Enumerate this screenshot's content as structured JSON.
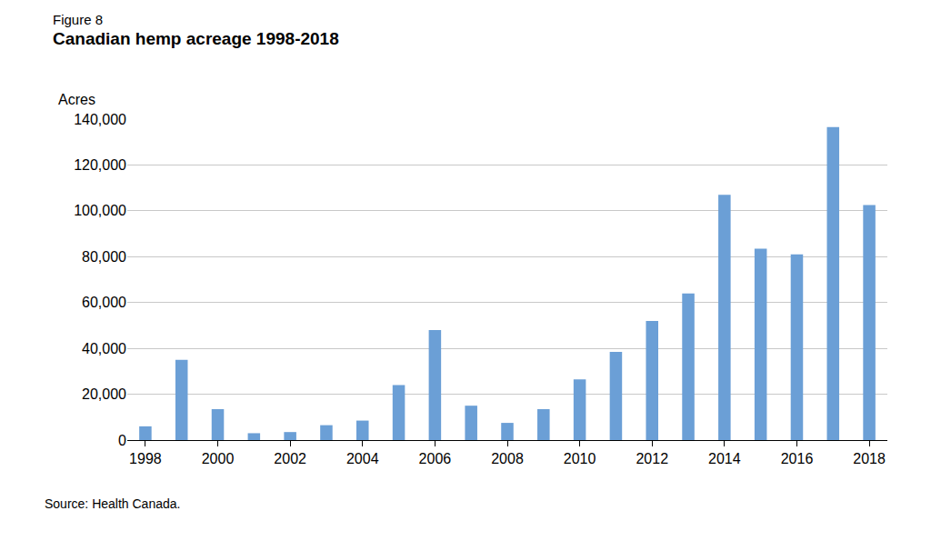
{
  "chart_data": {
    "type": "bar",
    "subtitle": "Figure 8",
    "title": "Canadian hemp acreage 1998-2018",
    "ylabel": "Acres",
    "source": "Source: Health Canada.",
    "categories": [
      "1998",
      null,
      "2000",
      null,
      "2002",
      null,
      "2004",
      null,
      "2006",
      null,
      "2008",
      null,
      "2010",
      null,
      "2012",
      null,
      "2014",
      null,
      "2016",
      null,
      "2018"
    ],
    "values": [
      6000,
      35000,
      13500,
      3000,
      3500,
      6500,
      8500,
      24000,
      48000,
      15000,
      7500,
      13500,
      26500,
      38500,
      52000,
      64000,
      107000,
      83500,
      81000,
      136500,
      102500
    ],
    "color": "#6b9fd6",
    "ylim": [
      0,
      140000
    ],
    "yticks": [
      0,
      {
        "value": 20000,
        "label": "20,000"
      },
      {
        "value": 40000,
        "label": "40,000"
      },
      {
        "value": 60000,
        "label": "60,000"
      },
      {
        "value": 80000,
        "label": "80,000"
      },
      {
        "value": 100000,
        "label": "100,000"
      },
      {
        "value": 120000,
        "label": "120,000"
      },
      {
        "value": 140000,
        "label": "140,000"
      }
    ],
    "grid": true
  }
}
